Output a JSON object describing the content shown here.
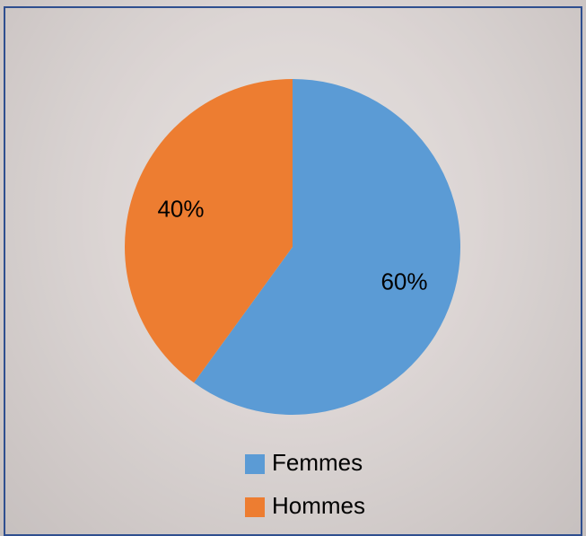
{
  "chart_data": {
    "type": "pie",
    "categories": [
      "Femmes",
      "Hommes"
    ],
    "values": [
      60,
      40
    ],
    "value_labels": [
      "60%",
      "40%"
    ],
    "colors": [
      "#5b9bd5",
      "#ed7d31"
    ]
  }
}
